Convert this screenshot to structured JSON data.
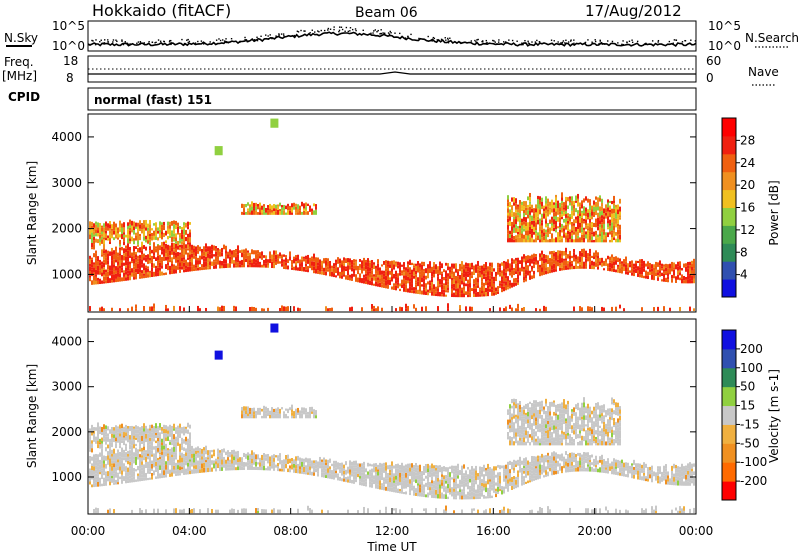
{
  "header": {
    "title": "Hokkaido (fitACF)",
    "beam": "Beam 06",
    "date": "17/Aug/2012"
  },
  "top_panels": {
    "nsky_label": "N.Sky",
    "nsky_ticks": [
      "10^5",
      "10^0"
    ],
    "nsky_right_ticks": [
      "10^5",
      "10^0"
    ],
    "nsearch_label": "N.Search",
    "freq_label_1": "Freq.",
    "freq_label_2": "[MHz]",
    "freq_ticks": [
      "18",
      "8"
    ],
    "nave_ticks": [
      "60",
      "0"
    ],
    "nave_label": "Nave",
    "cpid_label": "CPID",
    "cpid_text": "normal (fast) 151"
  },
  "colors": {
    "power": [
      "#1010e0",
      "#3050b0",
      "#2e8b57",
      "#4aa84a",
      "#90d040",
      "#f0c020",
      "#f09020",
      "#f06010",
      "#f02010",
      "#ff0000"
    ],
    "velocity_bins": [
      "#ff0000",
      "#ff6a00",
      "#f09020",
      "#f0b040",
      "#c8c8c8",
      "#90d040",
      "#2e8b57",
      "#3050b0",
      "#1010e0"
    ]
  },
  "chart_data": [
    {
      "type": "heatmap",
      "name": "power_panel",
      "ylabel": "Slant Range [km]",
      "colorbar_label": "Power [dB]",
      "colorbar_ticks": [
        "28",
        "24",
        "20",
        "16",
        "12",
        "8",
        "4"
      ],
      "yticks": [
        "4000",
        "3000",
        "2000",
        "1000"
      ],
      "ylim": [
        180,
        4500
      ],
      "xlim_hours": [
        0,
        24
      ]
    },
    {
      "type": "heatmap",
      "name": "velocity_panel",
      "ylabel": "Slant Range [km]",
      "colorbar_label": "Velocity [m s-1]",
      "colorbar_ticks": [
        "200",
        "100",
        "50",
        "15",
        "-15",
        "-50",
        "-100",
        "-200"
      ],
      "yticks": [
        "4000",
        "3000",
        "2000",
        "1000"
      ],
      "ylim": [
        180,
        4500
      ],
      "xlim_hours": [
        0,
        24
      ]
    }
  ],
  "xaxis": {
    "ticks": [
      "00:00",
      "04:00",
      "08:00",
      "12:00",
      "16:00",
      "20:00",
      "00:00"
    ],
    "label": "Time UT"
  }
}
